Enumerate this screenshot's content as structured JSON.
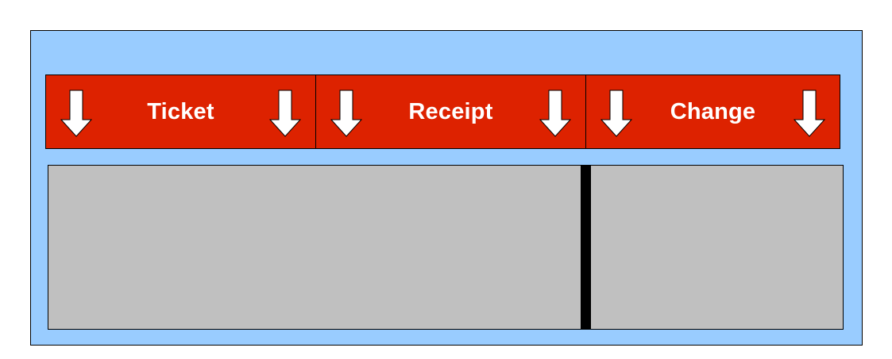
{
  "slots": [
    {
      "label": "Ticket"
    },
    {
      "label": "Receipt"
    },
    {
      "label": "Change"
    }
  ],
  "colors": {
    "machine_body": "#99ccff",
    "slot_fill": "#dd2200",
    "slot_text": "#ffffff",
    "tray_fill": "#c0c0c0",
    "divider": "#000000"
  },
  "icons": {
    "slot_arrow": "down-arrow-icon"
  }
}
